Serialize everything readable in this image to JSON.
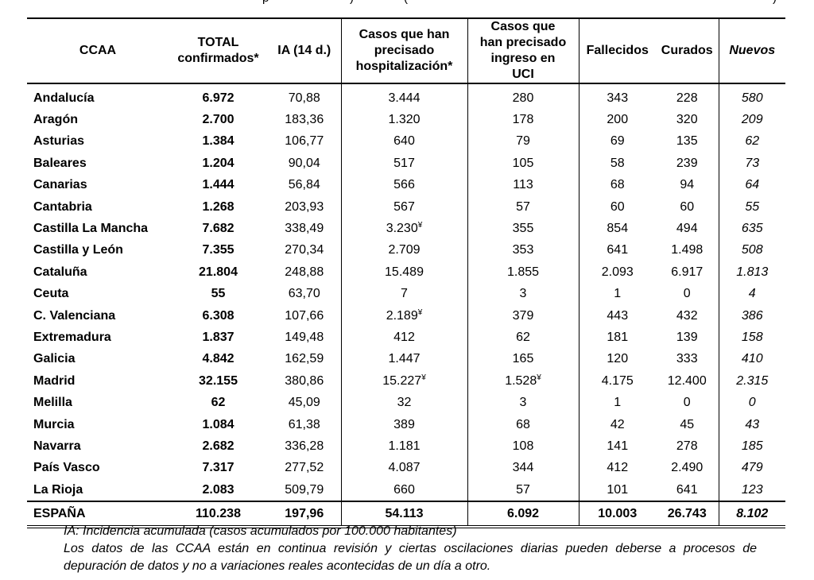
{
  "cropped_top": {
    "left": "p",
    "mid": ") ",
    "paren": "(",
    "right": ")"
  },
  "headers": {
    "ccaa": "CCAA",
    "total": "TOTAL confirmados*",
    "ia": "IA (14 d.)",
    "hosp": "Casos que han precisado hospitalización*",
    "uci": "Casos que han precisado ingreso en UCI",
    "fallecidos": "Fallecidos",
    "curados": "Curados",
    "nuevos": "Nuevos"
  },
  "rows": [
    {
      "ccaa": "Andalucía",
      "total": "6.972",
      "ia": "70,88",
      "hosp": "3.444",
      "hosp_mark": "",
      "uci": "280",
      "uci_mark": "",
      "fallecidos": "343",
      "curados": "228",
      "nuevos": "580"
    },
    {
      "ccaa": "Aragón",
      "total": "2.700",
      "ia": "183,36",
      "hosp": "1.320",
      "hosp_mark": "",
      "uci": "178",
      "uci_mark": "",
      "fallecidos": "200",
      "curados": "320",
      "nuevos": "209"
    },
    {
      "ccaa": "Asturias",
      "total": "1.384",
      "ia": "106,77",
      "hosp": "640",
      "hosp_mark": "",
      "uci": "79",
      "uci_mark": "",
      "fallecidos": "69",
      "curados": "135",
      "nuevos": "62"
    },
    {
      "ccaa": "Baleares",
      "total": "1.204",
      "ia": "90,04",
      "hosp": "517",
      "hosp_mark": "",
      "uci": "105",
      "uci_mark": "",
      "fallecidos": "58",
      "curados": "239",
      "nuevos": "73"
    },
    {
      "ccaa": "Canarias",
      "total": "1.444",
      "ia": "56,84",
      "hosp": "566",
      "hosp_mark": "",
      "uci": "113",
      "uci_mark": "",
      "fallecidos": "68",
      "curados": "94",
      "nuevos": "64"
    },
    {
      "ccaa": "Cantabria",
      "total": "1.268",
      "ia": "203,93",
      "hosp": "567",
      "hosp_mark": "",
      "uci": "57",
      "uci_mark": "",
      "fallecidos": "60",
      "curados": "60",
      "nuevos": "55"
    },
    {
      "ccaa": "Castilla La Mancha",
      "total": "7.682",
      "ia": "338,49",
      "hosp": "3.230",
      "hosp_mark": "¥",
      "uci": "355",
      "uci_mark": "",
      "fallecidos": "854",
      "curados": "494",
      "nuevos": "635"
    },
    {
      "ccaa": "Castilla y León",
      "total": "7.355",
      "ia": "270,34",
      "hosp": "2.709",
      "hosp_mark": "",
      "uci": "353",
      "uci_mark": "",
      "fallecidos": "641",
      "curados": "1.498",
      "nuevos": "508"
    },
    {
      "ccaa": "Cataluña",
      "total": "21.804",
      "ia": "248,88",
      "hosp": "15.489",
      "hosp_mark": "",
      "uci": "1.855",
      "uci_mark": "",
      "fallecidos": "2.093",
      "curados": "6.917",
      "nuevos": "1.813"
    },
    {
      "ccaa": "Ceuta",
      "total": "55",
      "ia": "63,70",
      "hosp": "7",
      "hosp_mark": "",
      "uci": "3",
      "uci_mark": "",
      "fallecidos": "1",
      "curados": "0",
      "nuevos": "4"
    },
    {
      "ccaa": "C. Valenciana",
      "total": "6.308",
      "ia": "107,66",
      "hosp": "2.189",
      "hosp_mark": "¥",
      "uci": "379",
      "uci_mark": "",
      "fallecidos": "443",
      "curados": "432",
      "nuevos": "386"
    },
    {
      "ccaa": "Extremadura",
      "total": "1.837",
      "ia": "149,48",
      "hosp": "412",
      "hosp_mark": "",
      "uci": "62",
      "uci_mark": "",
      "fallecidos": "181",
      "curados": "139",
      "nuevos": "158"
    },
    {
      "ccaa": "Galicia",
      "total": "4.842",
      "ia": "162,59",
      "hosp": "1.447",
      "hosp_mark": "",
      "uci": "165",
      "uci_mark": "",
      "fallecidos": "120",
      "curados": "333",
      "nuevos": "410"
    },
    {
      "ccaa": "Madrid",
      "total": "32.155",
      "ia": "380,86",
      "hosp": "15.227",
      "hosp_mark": "¥",
      "uci": "1.528",
      "uci_mark": "¥",
      "fallecidos": "4.175",
      "curados": "12.400",
      "nuevos": "2.315"
    },
    {
      "ccaa": "Melilla",
      "total": "62",
      "ia": "45,09",
      "hosp": "32",
      "hosp_mark": "",
      "uci": "3",
      "uci_mark": "",
      "fallecidos": "1",
      "curados": "0",
      "nuevos": "0"
    },
    {
      "ccaa": "Murcia",
      "total": "1.084",
      "ia": "61,38",
      "hosp": "389",
      "hosp_mark": "",
      "uci": "68",
      "uci_mark": "",
      "fallecidos": "42",
      "curados": "45",
      "nuevos": "43"
    },
    {
      "ccaa": "Navarra",
      "total": "2.682",
      "ia": "336,28",
      "hosp": "1.181",
      "hosp_mark": "",
      "uci": "108",
      "uci_mark": "",
      "fallecidos": "141",
      "curados": "278",
      "nuevos": "185"
    },
    {
      "ccaa": "País Vasco",
      "total": "7.317",
      "ia": "277,52",
      "hosp": "4.087",
      "hosp_mark": "",
      "uci": "344",
      "uci_mark": "",
      "fallecidos": "412",
      "curados": "2.490",
      "nuevos": "479"
    },
    {
      "ccaa": "La Rioja",
      "total": "2.083",
      "ia": "509,79",
      "hosp": "660",
      "hosp_mark": "",
      "uci": "57",
      "uci_mark": "",
      "fallecidos": "101",
      "curados": "641",
      "nuevos": "123"
    }
  ],
  "totals": {
    "ccaa": "ESPAÑA",
    "total": "110.238",
    "ia": "197,96",
    "hosp": "54.113",
    "uci": "6.092",
    "fallecidos": "10.003",
    "curados": "26.743",
    "nuevos": "8.102"
  },
  "notes": {
    "line1": "IA: Incidencia acumulada (casos acumulados por 100.000 habitantes)",
    "line2a": "Los datos de las CCAA están en continua revisión y ciertas oscilaciones diarias pueden deberse a procesos de",
    "line2b": "depuración de datos y no a variaciones reales acontecidas de un día a otro."
  }
}
